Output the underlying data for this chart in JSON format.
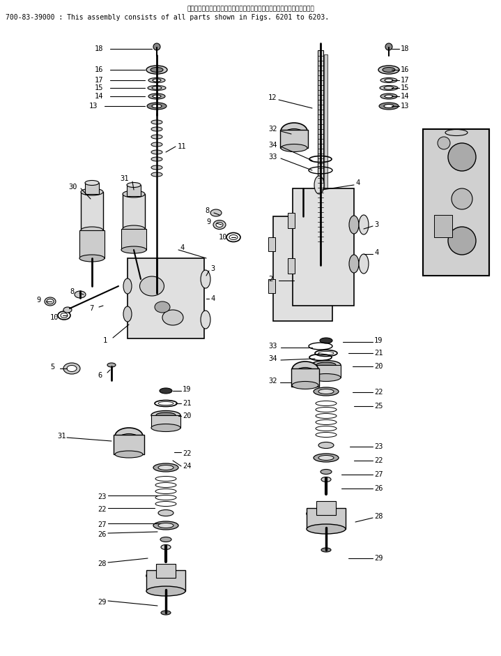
{
  "title_line1": "このアセンブリの構成部品は第６２０１図から第６２０３図まで含みます。",
  "title_line2": "700-83-39000 : This assembly consists of all parts shown in Figs. 6201 to 6203.",
  "bg_color": "#ffffff",
  "line_color": "#000000",
  "text_color": "#000000",
  "fig_width": 7.19,
  "fig_height": 9.4,
  "dpi": 100
}
